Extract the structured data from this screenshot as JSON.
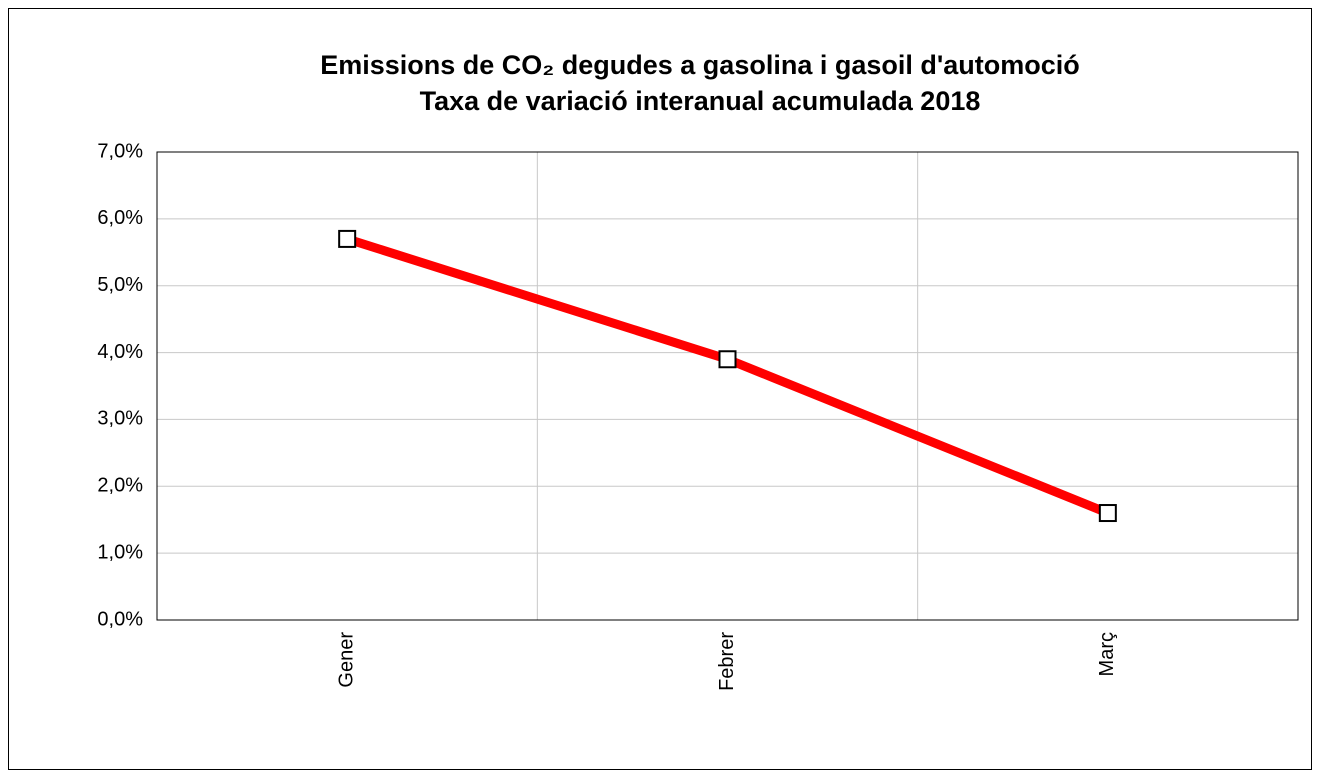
{
  "chart_data": {
    "type": "line",
    "title": "Emissions de CO₂ degudes a gasolina i gasoil d'automoció",
    "subtitle": "Taxa de variació interanual acumulada 2018",
    "categories": [
      "Gener",
      "Febrer",
      "Març"
    ],
    "series": [
      {
        "color": "#ff0000",
        "values": [
          5.7,
          3.9,
          1.6
        ]
      }
    ],
    "ylim": [
      0,
      7
    ],
    "yticks": [
      {
        "value": 0,
        "label": "0,0%"
      },
      {
        "value": 1,
        "label": "1,0%"
      },
      {
        "value": 2,
        "label": "2,0%"
      },
      {
        "value": 3,
        "label": "3,0%"
      },
      {
        "value": 4,
        "label": "4,0%"
      },
      {
        "value": 5,
        "label": "5,0%"
      },
      {
        "value": 6,
        "label": "6,0%"
      },
      {
        "value": 7,
        "label": "7,0%"
      }
    ],
    "grid": true
  }
}
